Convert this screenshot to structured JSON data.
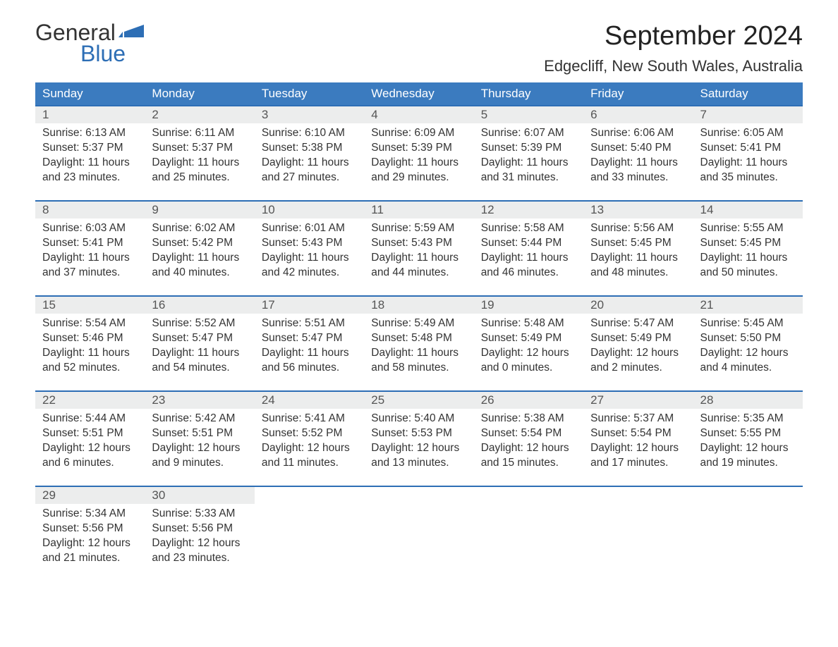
{
  "logo": {
    "word1": "General",
    "word2": "Blue",
    "accent_color": "#2d6eb5"
  },
  "title": "September 2024",
  "location": "Edgecliff, New South Wales, Australia",
  "colors": {
    "header_bg": "#3b7bbf",
    "header_text": "#ffffff",
    "daynum_bg": "#eceded",
    "row_border": "#2d6eb5",
    "body_text": "#333333",
    "background": "#ffffff"
  },
  "day_headers": [
    "Sunday",
    "Monday",
    "Tuesday",
    "Wednesday",
    "Thursday",
    "Friday",
    "Saturday"
  ],
  "weeks": [
    [
      {
        "n": "1",
        "sr": "6:13 AM",
        "ss": "5:37 PM",
        "dl": "11 hours and 23 minutes."
      },
      {
        "n": "2",
        "sr": "6:11 AM",
        "ss": "5:37 PM",
        "dl": "11 hours and 25 minutes."
      },
      {
        "n": "3",
        "sr": "6:10 AM",
        "ss": "5:38 PM",
        "dl": "11 hours and 27 minutes."
      },
      {
        "n": "4",
        "sr": "6:09 AM",
        "ss": "5:39 PM",
        "dl": "11 hours and 29 minutes."
      },
      {
        "n": "5",
        "sr": "6:07 AM",
        "ss": "5:39 PM",
        "dl": "11 hours and 31 minutes."
      },
      {
        "n": "6",
        "sr": "6:06 AM",
        "ss": "5:40 PM",
        "dl": "11 hours and 33 minutes."
      },
      {
        "n": "7",
        "sr": "6:05 AM",
        "ss": "5:41 PM",
        "dl": "11 hours and 35 minutes."
      }
    ],
    [
      {
        "n": "8",
        "sr": "6:03 AM",
        "ss": "5:41 PM",
        "dl": "11 hours and 37 minutes."
      },
      {
        "n": "9",
        "sr": "6:02 AM",
        "ss": "5:42 PM",
        "dl": "11 hours and 40 minutes."
      },
      {
        "n": "10",
        "sr": "6:01 AM",
        "ss": "5:43 PM",
        "dl": "11 hours and 42 minutes."
      },
      {
        "n": "11",
        "sr": "5:59 AM",
        "ss": "5:43 PM",
        "dl": "11 hours and 44 minutes."
      },
      {
        "n": "12",
        "sr": "5:58 AM",
        "ss": "5:44 PM",
        "dl": "11 hours and 46 minutes."
      },
      {
        "n": "13",
        "sr": "5:56 AM",
        "ss": "5:45 PM",
        "dl": "11 hours and 48 minutes."
      },
      {
        "n": "14",
        "sr": "5:55 AM",
        "ss": "5:45 PM",
        "dl": "11 hours and 50 minutes."
      }
    ],
    [
      {
        "n": "15",
        "sr": "5:54 AM",
        "ss": "5:46 PM",
        "dl": "11 hours and 52 minutes."
      },
      {
        "n": "16",
        "sr": "5:52 AM",
        "ss": "5:47 PM",
        "dl": "11 hours and 54 minutes."
      },
      {
        "n": "17",
        "sr": "5:51 AM",
        "ss": "5:47 PM",
        "dl": "11 hours and 56 minutes."
      },
      {
        "n": "18",
        "sr": "5:49 AM",
        "ss": "5:48 PM",
        "dl": "11 hours and 58 minutes."
      },
      {
        "n": "19",
        "sr": "5:48 AM",
        "ss": "5:49 PM",
        "dl": "12 hours and 0 minutes."
      },
      {
        "n": "20",
        "sr": "5:47 AM",
        "ss": "5:49 PM",
        "dl": "12 hours and 2 minutes."
      },
      {
        "n": "21",
        "sr": "5:45 AM",
        "ss": "5:50 PM",
        "dl": "12 hours and 4 minutes."
      }
    ],
    [
      {
        "n": "22",
        "sr": "5:44 AM",
        "ss": "5:51 PM",
        "dl": "12 hours and 6 minutes."
      },
      {
        "n": "23",
        "sr": "5:42 AM",
        "ss": "5:51 PM",
        "dl": "12 hours and 9 minutes."
      },
      {
        "n": "24",
        "sr": "5:41 AM",
        "ss": "5:52 PM",
        "dl": "12 hours and 11 minutes."
      },
      {
        "n": "25",
        "sr": "5:40 AM",
        "ss": "5:53 PM",
        "dl": "12 hours and 13 minutes."
      },
      {
        "n": "26",
        "sr": "5:38 AM",
        "ss": "5:54 PM",
        "dl": "12 hours and 15 minutes."
      },
      {
        "n": "27",
        "sr": "5:37 AM",
        "ss": "5:54 PM",
        "dl": "12 hours and 17 minutes."
      },
      {
        "n": "28",
        "sr": "5:35 AM",
        "ss": "5:55 PM",
        "dl": "12 hours and 19 minutes."
      }
    ],
    [
      {
        "n": "29",
        "sr": "5:34 AM",
        "ss": "5:56 PM",
        "dl": "12 hours and 21 minutes."
      },
      {
        "n": "30",
        "sr": "5:33 AM",
        "ss": "5:56 PM",
        "dl": "12 hours and 23 minutes."
      },
      null,
      null,
      null,
      null,
      null
    ]
  ],
  "labels": {
    "sunrise": "Sunrise: ",
    "sunset": "Sunset: ",
    "daylight": "Daylight: "
  }
}
